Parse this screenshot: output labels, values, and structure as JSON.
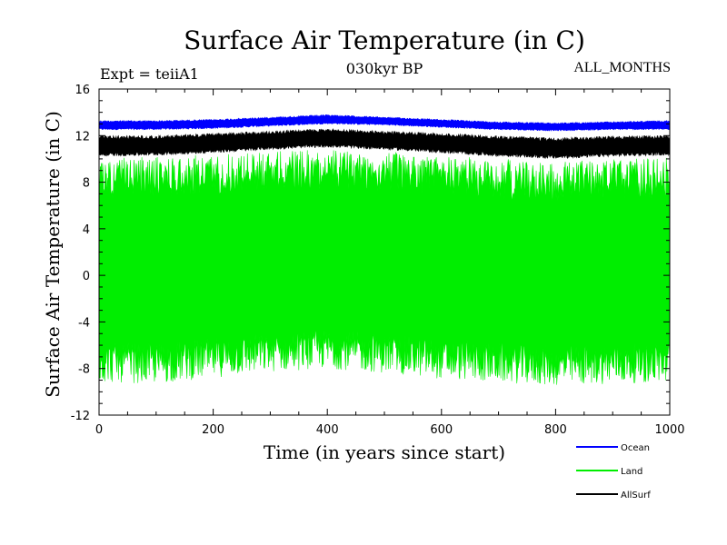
{
  "chart_data": {
    "type": "line",
    "title": "Surface Air Temperature (in C)",
    "subtitle": "030kyr BP",
    "expt_label": "Expt = teiiA1",
    "months_label": "ALL_MONTHS",
    "xlabel": "Time (in years since start)",
    "ylabel": "Surface Air Temperature (in C)",
    "xlim": [
      0,
      1000
    ],
    "ylim": [
      -12,
      16
    ],
    "x_ticks": [
      0,
      200,
      400,
      600,
      800,
      1000
    ],
    "y_ticks": [
      -12,
      -8,
      -4,
      0,
      4,
      8,
      12,
      16
    ],
    "grid": false,
    "legend_position": "bottom-right",
    "x": [
      0,
      100,
      200,
      300,
      400,
      500,
      600,
      700,
      800,
      900,
      1000
    ],
    "series": [
      {
        "name": "Ocean",
        "color": "#0000ff",
        "low": [
          12.5,
          12.5,
          12.6,
          12.8,
          13.0,
          12.9,
          12.7,
          12.5,
          12.4,
          12.5,
          12.5
        ],
        "high": [
          13.3,
          13.3,
          13.4,
          13.6,
          13.8,
          13.6,
          13.4,
          13.2,
          13.1,
          13.2,
          13.3
        ]
      },
      {
        "name": "Land",
        "color": "#00ee00",
        "low": [
          -9.2,
          -9.3,
          -8.8,
          -8.3,
          -8.0,
          -8.4,
          -8.9,
          -9.2,
          -9.5,
          -9.3,
          -9.2
        ],
        "high": [
          10.0,
          10.2,
          10.4,
          10.7,
          10.8,
          10.6,
          10.3,
          10.0,
          9.8,
          10.0,
          10.1
        ]
      },
      {
        "name": "AllSurf",
        "color": "#000000",
        "low": [
          10.2,
          10.3,
          10.5,
          10.8,
          11.0,
          10.8,
          10.5,
          10.2,
          10.0,
          10.2,
          10.3
        ],
        "high": [
          12.0,
          12.0,
          12.2,
          12.4,
          12.6,
          12.4,
          12.2,
          12.0,
          11.8,
          12.0,
          12.0
        ]
      }
    ]
  }
}
